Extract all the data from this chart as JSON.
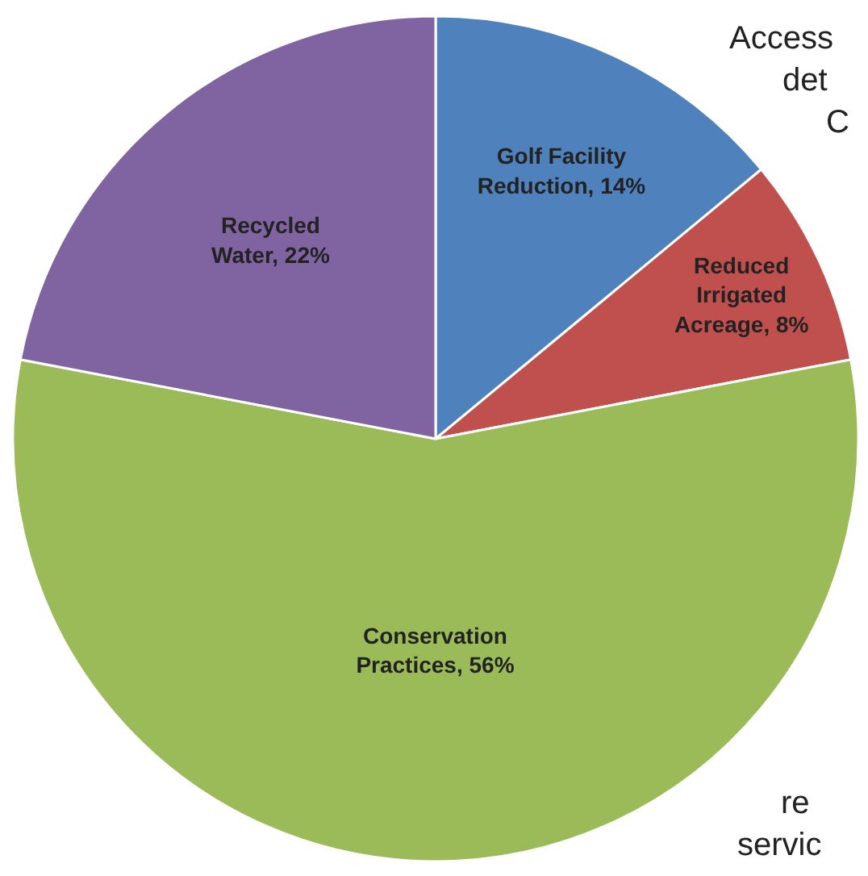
{
  "chart_data": {
    "type": "pie",
    "categories": [
      "Golf Facility Reduction",
      "Reduced Irrigated Acreage",
      "Conservation Practices",
      "Recycled Water"
    ],
    "values": [
      14,
      8,
      56,
      22
    ],
    "value_labels": [
      "14%",
      "8%",
      "56%",
      "22%"
    ],
    "colors": [
      "#4f81bd",
      "#c0504d",
      "#9bbb59",
      "#8064a2"
    ],
    "legend": false,
    "annotations": [
      "Access",
      "det",
      "C",
      "re",
      "servic"
    ]
  }
}
